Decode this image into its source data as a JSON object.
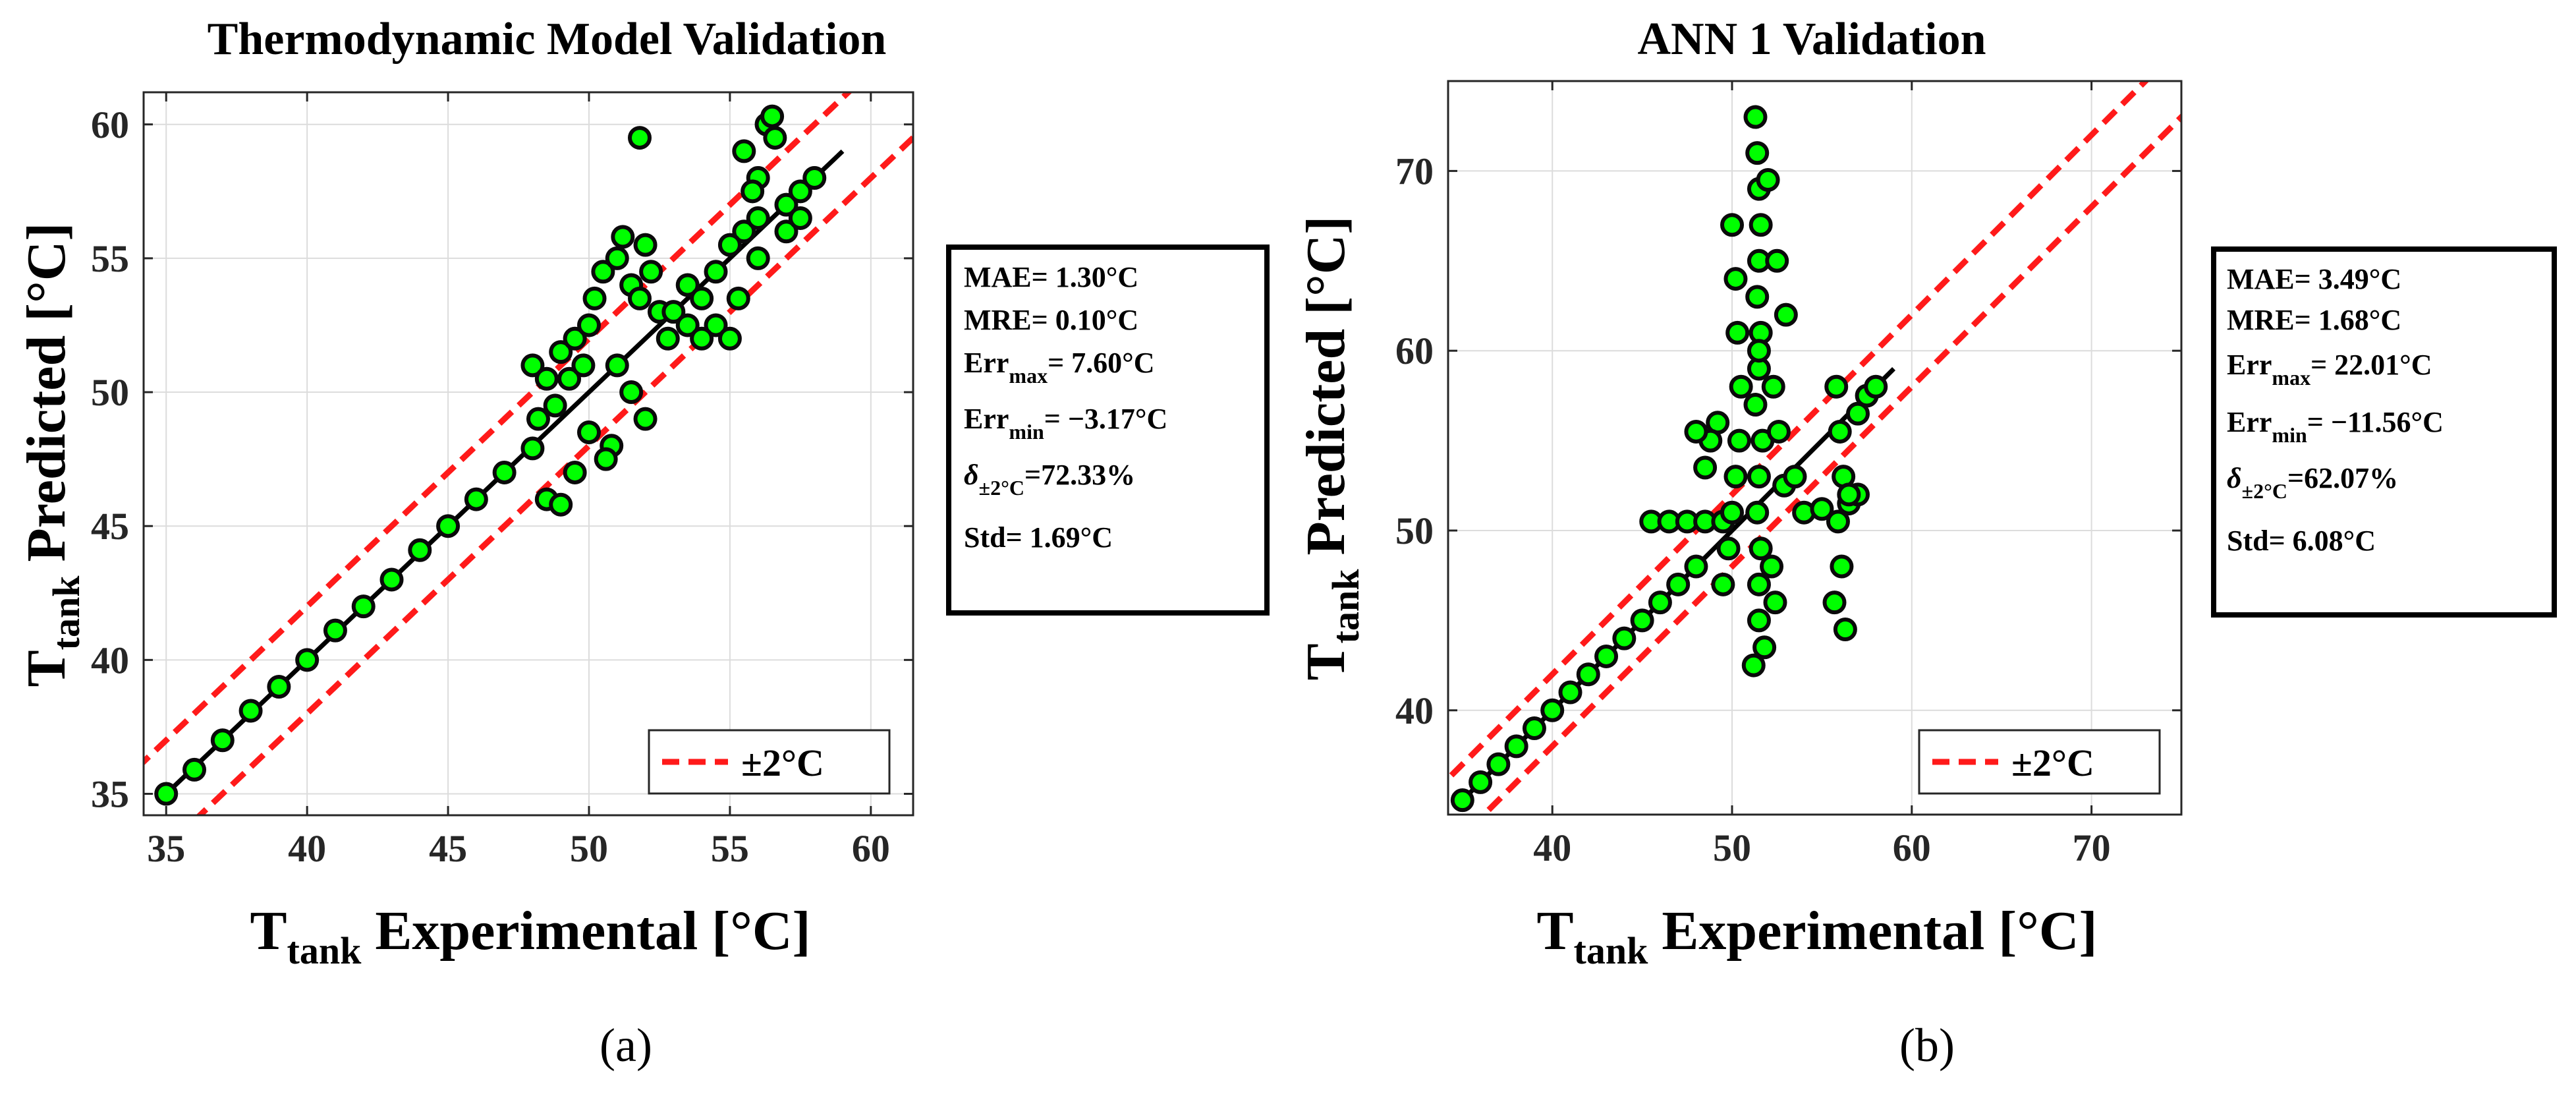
{
  "colors": {
    "marker_fill": "#00ff00",
    "marker_edge": "#0a0a0a",
    "band": "#ff1a1a",
    "fit_line": "#000000",
    "grid": "#dcdcdc"
  },
  "chart_data": [
    {
      "type": "scatter",
      "title": "Thermodynamic Model Validation",
      "xlabel": {
        "main": "T",
        "sub": "tank",
        "rest": " Experimental [°C]"
      },
      "ylabel": {
        "main": "T",
        "sub": "tank",
        "rest": " Predicted [°C]"
      },
      "xlim": [
        34.2,
        61.5
      ],
      "ylim": [
        34.2,
        61.2
      ],
      "xticks": [
        35,
        40,
        45,
        50,
        55,
        60
      ],
      "yticks": [
        35,
        40,
        45,
        50,
        55,
        60
      ],
      "grid": true,
      "panel_label": "(a)",
      "legend": {
        "label": "±2°C",
        "location": "bottom-right"
      },
      "band_offset": 2,
      "fit_line": [
        [
          35,
          35
        ],
        [
          59,
          59
        ]
      ],
      "stats": {
        "mae": "MAE=  1.30°C",
        "mre": "MRE=  0.10°C",
        "errmax_main": "Err",
        "errmax_sub": "max",
        "errmax_val": "=  7.60°C",
        "errmin_main": "Err",
        "errmin_sub": "min",
        "errmin_val": "= −3.17°C",
        "delta_main": "δ",
        "delta_sub": "±2°C",
        "delta_val": "=72.33%",
        "std": "Std=  1.69°C"
      },
      "series": [
        {
          "name": "diagonal",
          "x": [
            35.0,
            36.0,
            37.0,
            38.0,
            39.0,
            40.0,
            41.0,
            42.0,
            43.0,
            44.0,
            45.0,
            46.0,
            47.0,
            48.0
          ],
          "y": [
            35.0,
            35.9,
            37.0,
            38.1,
            39.0,
            40.0,
            41.1,
            42.0,
            43.0,
            44.1,
            45.0,
            46.0,
            47.0,
            47.9
          ]
        },
        {
          "name": "cluster-48-50",
          "x": [
            48.0,
            48.5,
            49.0,
            49.5,
            48.5,
            49.0,
            49.5,
            50.0,
            48.2,
            48.8,
            49.3,
            49.8,
            50.0,
            50.2
          ],
          "y": [
            51.0,
            50.5,
            51.5,
            52.0,
            46.0,
            45.8,
            47.0,
            48.5,
            49.0,
            49.5,
            50.5,
            51.0,
            52.5,
            53.5
          ]
        },
        {
          "name": "cluster-50-53",
          "x": [
            50.5,
            51.0,
            51.2,
            51.5,
            52.0,
            52.5,
            52.8,
            51.0,
            51.5,
            52.0,
            50.8,
            51.8,
            52.2,
            53.0,
            53.5,
            50.6
          ],
          "y": [
            54.5,
            55.0,
            55.8,
            54.0,
            55.5,
            53.0,
            52.0,
            51.0,
            50.0,
            49.0,
            48.0,
            53.5,
            54.5,
            53.0,
            52.5,
            47.5
          ]
        },
        {
          "name": "outlier",
          "x": [
            51.8
          ],
          "y": [
            59.5
          ]
        },
        {
          "name": "cluster-53-58",
          "x": [
            53.5,
            54.0,
            54.5,
            55.0,
            55.5,
            56.0,
            56.3,
            56.5,
            55.5,
            56.0,
            57.0,
            57.5,
            58.0,
            56.0,
            55.0,
            57.0,
            54.0,
            55.8,
            56.6,
            57.5,
            54.5,
            55.3
          ],
          "y": [
            54.0,
            53.5,
            52.5,
            52.0,
            56.0,
            58.0,
            60.0,
            60.3,
            59.0,
            55.0,
            57.0,
            57.5,
            58.0,
            56.5,
            55.5,
            56.0,
            52.0,
            57.5,
            59.5,
            56.5,
            54.5,
            53.5
          ]
        }
      ]
    },
    {
      "type": "scatter",
      "title": "ANN 1 Validation",
      "xlabel": {
        "main": "T",
        "sub": "tank",
        "rest": " Experimental [°C]"
      },
      "ylabel": {
        "main": "T",
        "sub": "tank",
        "rest": " Predicted [°C]"
      },
      "xlim": [
        34.2,
        75.0
      ],
      "ylim": [
        34.2,
        75.0
      ],
      "xticks": [
        40,
        50,
        60,
        70
      ],
      "yticks": [
        40,
        50,
        60,
        70
      ],
      "grid": true,
      "panel_label": "(b)",
      "legend": {
        "label": "±2°C",
        "location": "bottom-right"
      },
      "band_offset": 2,
      "fit_line": [
        [
          35,
          35
        ],
        [
          59,
          59
        ]
      ],
      "stats": {
        "mae": "MAE=  3.49°C",
        "mre": "MRE=  1.68°C",
        "errmax_main": "Err",
        "errmax_sub": "max",
        "errmax_val": "= 22.01°C",
        "errmin_main": "Err",
        "errmin_sub": "min",
        "errmin_val": "= −11.56°C",
        "delta_main": "δ",
        "delta_sub": "±2°C",
        "delta_val": "=62.07%",
        "std": "Std=  6.08°C"
      },
      "series": [
        {
          "name": "diagonal",
          "x": [
            35.0,
            36.0,
            37.0,
            38.0,
            39.0,
            40.0,
            41.0,
            42.0,
            43.0,
            44.0,
            45.0,
            46.0,
            47.0,
            48.0
          ],
          "y": [
            35.0,
            36.0,
            37.0,
            38.0,
            39.0,
            40.0,
            41.0,
            42.0,
            43.0,
            44.0,
            45.0,
            46.0,
            47.0,
            48.0
          ]
        },
        {
          "name": "horizontal-band",
          "x": [
            45.5,
            46.5,
            47.5,
            48.5,
            49.5,
            54.0,
            55.0,
            56.5,
            57.0
          ],
          "y": [
            50.5,
            50.5,
            50.5,
            50.5,
            50.5,
            51.0,
            51.2,
            51.5,
            52.0
          ]
        },
        {
          "name": "vertical-spike-51",
          "x": [
            51.3,
            51.4,
            51.5,
            51.6,
            51.5,
            51.4,
            51.6,
            51.5,
            51.3,
            51.7,
            51.5,
            51.4,
            51.6,
            51.5,
            51.5,
            51.8,
            51.2,
            51.5
          ],
          "y": [
            73.0,
            71.0,
            69.0,
            67.0,
            65.0,
            63.0,
            61.0,
            59.0,
            57.0,
            55.0,
            53.0,
            51.0,
            49.0,
            47.0,
            45.0,
            43.5,
            42.5,
            60.0
          ]
        },
        {
          "name": "vertical-spike-50",
          "x": [
            50.0,
            50.2,
            50.3,
            50.5,
            50.4,
            50.2,
            50.0,
            49.8,
            49.5,
            49.2,
            48.8,
            48.5,
            48.0
          ],
          "y": [
            67.0,
            64.0,
            61.0,
            58.0,
            55.0,
            53.0,
            51.0,
            49.0,
            47.0,
            56.0,
            55.0,
            53.5,
            55.5
          ]
        },
        {
          "name": "right-cluster-52",
          "x": [
            52.0,
            52.5,
            53.0,
            52.3,
            52.6,
            52.9,
            52.2,
            52.4,
            53.5
          ],
          "y": [
            69.5,
            65.0,
            62.0,
            58.0,
            55.5,
            52.5,
            48.0,
            46.0,
            53.0
          ]
        },
        {
          "name": "right-cluster-56",
          "x": [
            55.8,
            56.0,
            56.2,
            55.9,
            56.1,
            55.7,
            56.3,
            57.0,
            57.5,
            58.0,
            56.5
          ],
          "y": [
            58.0,
            55.5,
            53.0,
            50.5,
            48.0,
            46.0,
            44.5,
            56.5,
            57.5,
            58.0,
            52.0
          ]
        }
      ]
    }
  ]
}
